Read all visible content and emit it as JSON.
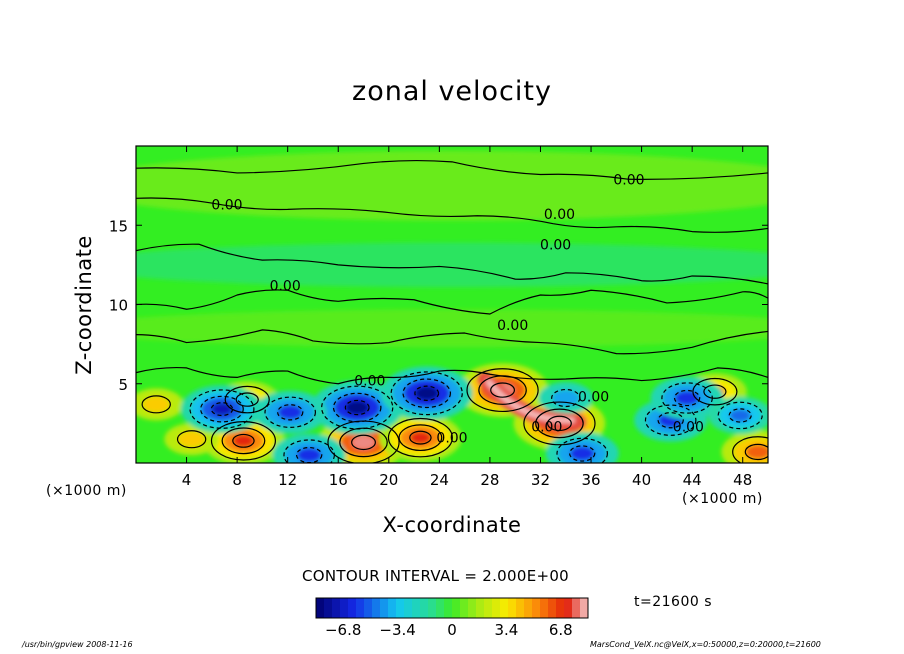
{
  "chart_data": {
    "type": "heatmap",
    "title": "zonal velocity",
    "xlabel": "X-coordinate",
    "ylabel": "Z-coordinate",
    "x_unit_label": "(×1000 m)",
    "x_unit_label_right": "(×1000 m)",
    "x_ticks": [
      4,
      8,
      12,
      16,
      20,
      24,
      28,
      32,
      36,
      40,
      44,
      48
    ],
    "y_ticks": [
      5,
      10,
      15
    ],
    "xlim": [
      0,
      50
    ],
    "ylim": [
      0,
      20
    ],
    "contour_interval_text": "CONTOUR INTERVAL = 2.000E+00",
    "contour_labels": [
      {
        "text": "0.00",
        "x": 39,
        "y": 17.9
      },
      {
        "text": "0.00",
        "x": 7.2,
        "y": 16.3
      },
      {
        "text": "0.00",
        "x": 33.5,
        "y": 15.7
      },
      {
        "text": "0.00",
        "x": 33.2,
        "y": 13.8
      },
      {
        "text": "0.00",
        "x": 11.8,
        "y": 11.2
      },
      {
        "text": "0.00",
        "x": 29.8,
        "y": 8.7
      },
      {
        "text": "0.00",
        "x": 18.5,
        "y": 5.2
      },
      {
        "text": "0.00",
        "x": 36.2,
        "y": 4.2
      },
      {
        "text": "0.00",
        "x": 25,
        "y": 1.6
      },
      {
        "text": "0.00",
        "x": 32.5,
        "y": 2.3
      },
      {
        "text": "0.00",
        "x": 43.7,
        "y": 2.3
      }
    ],
    "features": [
      {
        "kind": "positive",
        "x": 33.5,
        "y": 2.5,
        "value": 8
      },
      {
        "kind": "positive",
        "x": 29,
        "y": 4.6,
        "value": 8
      },
      {
        "kind": "positive",
        "x": 18,
        "y": 1.3,
        "value": 8
      },
      {
        "kind": "positive",
        "x": 22.5,
        "y": 1.6,
        "value": 7
      },
      {
        "kind": "positive",
        "x": 8.5,
        "y": 1.4,
        "value": 7
      },
      {
        "kind": "positive",
        "x": 4.4,
        "y": 1.5,
        "value": 4
      },
      {
        "kind": "positive",
        "x": 8.8,
        "y": 4,
        "value": 5
      },
      {
        "kind": "positive",
        "x": 1.6,
        "y": 3.7,
        "value": 4
      },
      {
        "kind": "positive",
        "x": 45.8,
        "y": 4.5,
        "value": 5
      },
      {
        "kind": "positive",
        "x": 49.2,
        "y": 0.7,
        "value": 6
      },
      {
        "kind": "negative",
        "x": 17.5,
        "y": 3.5,
        "value": -8
      },
      {
        "kind": "negative",
        "x": 23,
        "y": 4.4,
        "value": -8
      },
      {
        "kind": "negative",
        "x": 6.8,
        "y": 3.4,
        "value": -7
      },
      {
        "kind": "negative",
        "x": 12.2,
        "y": 3.2,
        "value": -6
      },
      {
        "kind": "negative",
        "x": 13.7,
        "y": 0.5,
        "value": -6
      },
      {
        "kind": "negative",
        "x": 42.3,
        "y": 2.7,
        "value": -6
      },
      {
        "kind": "negative",
        "x": 43.6,
        "y": 4.1,
        "value": -6
      },
      {
        "kind": "negative",
        "x": 47.8,
        "y": 3,
        "value": -5
      },
      {
        "kind": "negative",
        "x": 35.3,
        "y": 0.6,
        "value": -6
      },
      {
        "kind": "negative",
        "x": 34,
        "y": 4.1,
        "value": -4
      }
    ],
    "colorbar": {
      "min": -8.5,
      "max": 8.5,
      "tick_labels": [
        "−6.8",
        "−3.4",
        "0",
        "3.4",
        "6.8"
      ],
      "tick_values": [
        -6.8,
        -3.4,
        0,
        3.4,
        6.8
      ]
    },
    "colors": {
      "neutral": "#33ee22",
      "positive": "#dd1100",
      "negative": "#0000aa"
    }
  },
  "annotations": {
    "time_label": "t=21600 s",
    "footer_left": "/usr/bin/gpview   2008-11-16",
    "footer_right": "MarsCond_VelX.nc@VelX,x=0:50000,z=0:20000,t=21600"
  }
}
